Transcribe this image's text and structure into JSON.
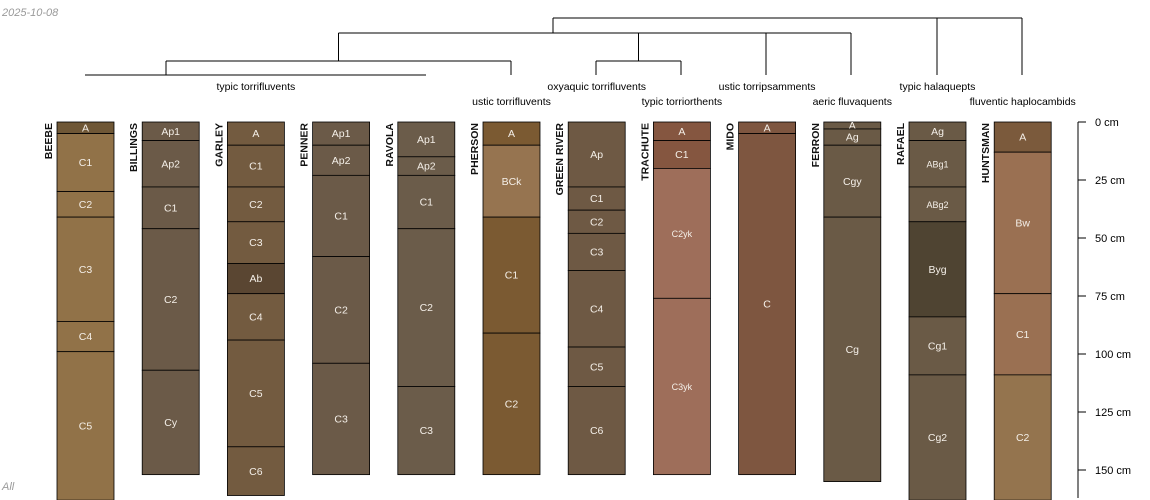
{
  "date_stamp": "2025-10-08",
  "corner_label": "All",
  "chart_data": {
    "type": "soil-profile-sketch",
    "title": "",
    "depth_unit": "cm",
    "ylim": [
      0,
      163
    ],
    "depth_axis": {
      "ticks": [
        0,
        25,
        50,
        75,
        100,
        125,
        150
      ],
      "tick_labels": [
        "0 cm",
        "25 cm",
        "50 cm",
        "75 cm",
        "100 cm",
        "125 cm",
        "150 cm"
      ]
    },
    "profiles": [
      {
        "name": "BEEBE",
        "horizons": [
          {
            "name": "A",
            "top": 0,
            "bottom": 5,
            "color": "#6f5736"
          },
          {
            "name": "C1",
            "top": 5,
            "bottom": 30,
            "color": "#917248"
          },
          {
            "name": "C2",
            "top": 30,
            "bottom": 41,
            "color": "#917248"
          },
          {
            "name": "C4",
            "top": 86,
            "bottom": 99,
            "color": "#917248"
          },
          {
            "name": "C3",
            "top": 41,
            "bottom": 86,
            "color": "#917248"
          },
          {
            "name": "C5",
            "top": 99,
            "bottom": 163,
            "color": "#917248"
          }
        ]
      },
      {
        "name": "BILLINGS",
        "horizons": [
          {
            "name": "Ap1",
            "top": 0,
            "bottom": 8,
            "color": "#6b5a48"
          },
          {
            "name": "Ap2",
            "top": 8,
            "bottom": 28,
            "color": "#6b5a48"
          },
          {
            "name": "C1",
            "top": 28,
            "bottom": 46,
            "color": "#6b5a48"
          },
          {
            "name": "C2",
            "top": 46,
            "bottom": 107,
            "color": "#6b5a48"
          },
          {
            "name": "Cy",
            "top": 107,
            "bottom": 152,
            "color": "#6b5a48"
          }
        ]
      },
      {
        "name": "GARLEY",
        "horizons": [
          {
            "name": "A",
            "top": 0,
            "bottom": 10,
            "color": "#735b40"
          },
          {
            "name": "C1",
            "top": 10,
            "bottom": 28,
            "color": "#735b40"
          },
          {
            "name": "C2",
            "top": 28,
            "bottom": 43,
            "color": "#735b40"
          },
          {
            "name": "C3",
            "top": 43,
            "bottom": 61,
            "color": "#735b40"
          },
          {
            "name": "Ab",
            "top": 61,
            "bottom": 74,
            "color": "#5a4632"
          },
          {
            "name": "C4",
            "top": 74,
            "bottom": 94,
            "color": "#735b40"
          },
          {
            "name": "C5",
            "top": 94,
            "bottom": 140,
            "color": "#735b40"
          },
          {
            "name": "C6",
            "top": 140,
            "bottom": 161,
            "color": "#735b40"
          }
        ]
      },
      {
        "name": "PENNER",
        "horizons": [
          {
            "name": "Ap1",
            "top": 0,
            "bottom": 10,
            "color": "#6b5a48"
          },
          {
            "name": "Ap2",
            "top": 10,
            "bottom": 23,
            "color": "#6b5a48"
          },
          {
            "name": "C1",
            "top": 23,
            "bottom": 58,
            "color": "#6b5a48"
          },
          {
            "name": "C2",
            "top": 58,
            "bottom": 104,
            "color": "#6b5a48"
          },
          {
            "name": "C3",
            "top": 104,
            "bottom": 152,
            "color": "#6b5a48"
          }
        ]
      },
      {
        "name": "RAVOLA",
        "horizons": [
          {
            "name": "Ap1",
            "top": 0,
            "bottom": 15,
            "color": "#6b5c4a"
          },
          {
            "name": "Ap2",
            "top": 15,
            "bottom": 23,
            "color": "#6b5c4a"
          },
          {
            "name": "C1",
            "top": 23,
            "bottom": 46,
            "color": "#6b5c4a"
          },
          {
            "name": "C2",
            "top": 46,
            "bottom": 114,
            "color": "#6b5c4a"
          },
          {
            "name": "C3",
            "top": 114,
            "bottom": 152,
            "color": "#6b5c4a"
          }
        ]
      },
      {
        "name": "PHERSON",
        "horizons": [
          {
            "name": "A",
            "top": 0,
            "bottom": 10,
            "color": "#7b5a32"
          },
          {
            "name": "BCk",
            "top": 10,
            "bottom": 41,
            "color": "#967450"
          },
          {
            "name": "C1",
            "top": 41,
            "bottom": 91,
            "color": "#7b5a32"
          },
          {
            "name": "C2",
            "top": 91,
            "bottom": 152,
            "color": "#7b5a32"
          }
        ]
      },
      {
        "name": "GREEN RIVER",
        "horizons": [
          {
            "name": "Ap",
            "top": 0,
            "bottom": 28,
            "color": "#6e5944"
          },
          {
            "name": "C1",
            "top": 28,
            "bottom": 38,
            "color": "#6e5944"
          },
          {
            "name": "C2",
            "top": 38,
            "bottom": 48,
            "color": "#6e5944"
          },
          {
            "name": "C3",
            "top": 48,
            "bottom": 64,
            "color": "#6e5944"
          },
          {
            "name": "C4",
            "top": 64,
            "bottom": 97,
            "color": "#6e5944"
          },
          {
            "name": "C5",
            "top": 97,
            "bottom": 114,
            "color": "#6e5944"
          },
          {
            "name": "C6",
            "top": 114,
            "bottom": 152,
            "color": "#6e5944"
          }
        ]
      },
      {
        "name": "TRACHUTE",
        "horizons": [
          {
            "name": "A",
            "top": 0,
            "bottom": 8,
            "color": "#855640"
          },
          {
            "name": "C1",
            "top": 8,
            "bottom": 20,
            "color": "#855640"
          },
          {
            "name": "C2yk",
            "top": 20,
            "bottom": 76,
            "color": "#9e6e5a"
          },
          {
            "name": "C3yk",
            "top": 76,
            "bottom": 152,
            "color": "#9e6e5a"
          }
        ]
      },
      {
        "name": "MIDO",
        "horizons": [
          {
            "name": "A",
            "top": 0,
            "bottom": 5,
            "color": "#7e5640"
          },
          {
            "name": "C",
            "top": 5,
            "bottom": 152,
            "color": "#7e5640"
          }
        ]
      },
      {
        "name": "FERRON",
        "horizons": [
          {
            "name": "A",
            "top": 0,
            "bottom": 3,
            "color": "#6a5a46"
          },
          {
            "name": "Ag",
            "top": 3,
            "bottom": 10,
            "color": "#6a5a46"
          },
          {
            "name": "Cgy",
            "top": 10,
            "bottom": 41,
            "color": "#6a5a46"
          },
          {
            "name": "Cg",
            "top": 41,
            "bottom": 155,
            "color": "#6a5a46"
          }
        ]
      },
      {
        "name": "RAFAEL",
        "horizons": [
          {
            "name": "Ag",
            "top": 0,
            "bottom": 8,
            "color": "#6a5a46"
          },
          {
            "name": "ABg1",
            "top": 8,
            "bottom": 28,
            "color": "#6a5a46"
          },
          {
            "name": "ABg2",
            "top": 28,
            "bottom": 43,
            "color": "#6a5a46"
          },
          {
            "name": "Byg",
            "top": 43,
            "bottom": 84,
            "color": "#4f4432"
          },
          {
            "name": "Cg1",
            "top": 84,
            "bottom": 109,
            "color": "#6a5a46"
          },
          {
            "name": "Cg2",
            "top": 109,
            "bottom": 163,
            "color": "#6a5a46"
          }
        ]
      },
      {
        "name": "HUNTSMAN",
        "horizons": [
          {
            "name": "A",
            "top": 0,
            "bottom": 13,
            "color": "#7b5a3c"
          },
          {
            "name": "Bw",
            "top": 13,
            "bottom": 74,
            "color": "#9a7052"
          },
          {
            "name": "C1",
            "top": 74,
            "bottom": 109,
            "color": "#9a7052"
          },
          {
            "name": "C2",
            "top": 109,
            "bottom": 163,
            "color": "#94744e"
          }
        ]
      }
    ],
    "group_labels": [
      {
        "text": "typic torrifluvents",
        "members": [
          "BEEBE",
          "BILLINGS",
          "GARLEY",
          "PENNER",
          "RAVOLA"
        ]
      },
      {
        "text": "ustic torrifluvents",
        "members": [
          "PHERSON"
        ]
      },
      {
        "text": "oxyaquic torrifluvents",
        "members": [
          "GREEN RIVER"
        ]
      },
      {
        "text": "typic torriorthents",
        "members": [
          "TRACHUTE"
        ]
      },
      {
        "text": "ustic torripsamments",
        "members": [
          "MIDO"
        ]
      },
      {
        "text": "aeric fluvaquents",
        "members": [
          "FERRON"
        ]
      },
      {
        "text": "typic halaquepts",
        "members": [
          "RAFAEL"
        ]
      },
      {
        "text": "fluventic haplocambids",
        "members": [
          "HUNTSMAN"
        ]
      }
    ],
    "dendrogram": {
      "merges": [
        {
          "left": "typic torrifluvents",
          "right": "ustic torrifluvents",
          "height": 1
        },
        {
          "left": "oxyaquic torrifluvents",
          "right": "typic torriorthents",
          "height": 1
        },
        {
          "left": "ustic torripsamments",
          "right": "aeric fluvaquents",
          "height": 2
        },
        {
          "left": [
            "typic torrifluvents",
            "ustic torrifluvents"
          ],
          "right": [
            "oxyaquic torrifluvents",
            "typic torriorthents"
          ],
          "height": 2
        },
        {
          "left": [
            "typic torrifluvents",
            "ustic torrifluvents",
            "oxyaquic torrifluvents",
            "typic torriorthents"
          ],
          "right": [
            "ustic torripsamments",
            "aeric fluvaquents"
          ],
          "height": 3
        },
        {
          "left": "typic halaquepts",
          "right": "fluventic haplocambids",
          "height": 3
        },
        {
          "left": "all-left",
          "right": [
            "typic halaquepts",
            "fluventic haplocambids"
          ],
          "height": 4
        }
      ]
    }
  }
}
